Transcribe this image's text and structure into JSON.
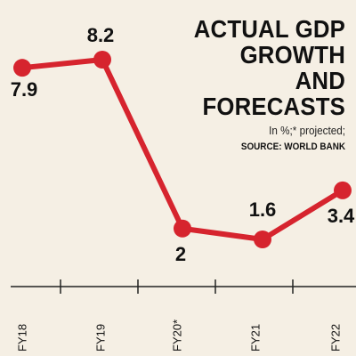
{
  "title_lines": [
    "ACTUAL GDP GROWTH",
    "AND FORECASTS"
  ],
  "subtitle": "In %;* projected;",
  "source": "SOURCE: WORLD BANK",
  "colors": {
    "background": "#f5efe4",
    "line": "#d6242e",
    "marker": "#d6242e",
    "text": "#111111"
  },
  "chart_data": {
    "type": "line",
    "categories": [
      "FY18",
      "FY19",
      "FY20*",
      "FY21",
      "FY22"
    ],
    "values": [
      7.9,
      8.2,
      2,
      1.6,
      3.4
    ],
    "labels": [
      "7.9",
      "8.2",
      "2",
      "1.6",
      "3.4"
    ],
    "title": "ACTUAL GDP GROWTH AND FORECASTS",
    "xlabel": "",
    "ylabel": "",
    "ylim": [
      0,
      10
    ],
    "grid": false,
    "legend": "none"
  }
}
